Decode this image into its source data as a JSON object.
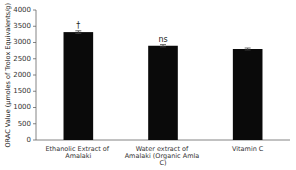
{
  "chart_data": {
    "type": "bar",
    "categories": [
      "Ethanolic Extract of Amalaki",
      "Water extract of Amalaki (Organic Amla C)",
      "Vitamin C"
    ],
    "values": [
      3320,
      2900,
      2800
    ],
    "errors": [
      40,
      35,
      30
    ],
    "color": "#0a0a0a",
    "ylim": [
      0,
      4000
    ],
    "yticks": [
      0,
      500,
      1000,
      1500,
      2000,
      2500,
      3000,
      3500,
      4000
    ],
    "ylabel": "ORAC Value (µmoles of Trolox Equivalents/g)",
    "annotations": [
      "†",
      "ns",
      null
    ],
    "grid": false
  }
}
